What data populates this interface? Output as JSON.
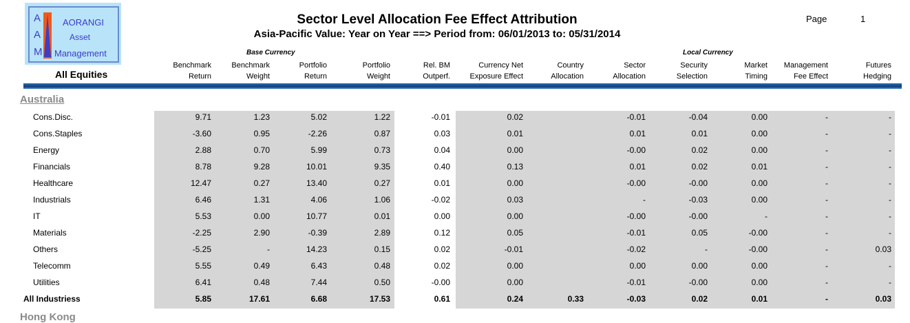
{
  "logo": {
    "letters": [
      "A",
      "A",
      "M"
    ],
    "lines": [
      "AORANGI",
      "Asset",
      "Management"
    ]
  },
  "header": {
    "title": "Sector Level Allocation Fee Effect Attribution",
    "subtitle": "Asia-Pacific Value: Year on Year ==> Period from: 06/01/2013 to: 05/31/2014",
    "page_label": "Page",
    "page_number": "1",
    "portfolio": "All Equities",
    "group_base": "Base Currency",
    "group_local": "Local Currency"
  },
  "columns": [
    [
      "Benchmark",
      "Return"
    ],
    [
      "Benchmark",
      "Weight"
    ],
    [
      "Portfolio",
      "Return"
    ],
    [
      "Portfolio",
      "Weight"
    ],
    [
      "Rel. BM",
      "Outperf."
    ],
    [
      "Currency Net",
      "Exposure Effect"
    ],
    [
      "Country",
      "Allocation"
    ],
    [
      "Sector",
      "Allocation"
    ],
    [
      "Security",
      "Selection"
    ],
    [
      "Market",
      "Timing"
    ],
    [
      "Management",
      "Fee Effect"
    ],
    [
      "Futures",
      "Hedging"
    ]
  ],
  "region": "Australia",
  "next_region": "Hong Kong",
  "rows": [
    {
      "label": "Cons.Disc.",
      "values": [
        "9.71",
        "1.23",
        "5.02",
        "1.22",
        "-0.01",
        "0.02",
        "",
        "-0.01",
        "-0.04",
        "0.00",
        "-",
        "-"
      ]
    },
    {
      "label": "Cons.Staples",
      "values": [
        "-3.60",
        "0.95",
        "-2.26",
        "0.87",
        "0.03",
        "0.01",
        "",
        "0.01",
        "0.01",
        "0.00",
        "-",
        "-"
      ]
    },
    {
      "label": "Energy",
      "values": [
        "2.88",
        "0.70",
        "5.99",
        "0.73",
        "0.04",
        "0.00",
        "",
        "-0.00",
        "0.02",
        "0.00",
        "-",
        "-"
      ]
    },
    {
      "label": "Financials",
      "values": [
        "8.78",
        "9.28",
        "10.01",
        "9.35",
        "0.40",
        "0.13",
        "",
        "0.01",
        "0.02",
        "0.01",
        "-",
        "-"
      ]
    },
    {
      "label": "Healthcare",
      "values": [
        "12.47",
        "0.27",
        "13.40",
        "0.27",
        "0.01",
        "0.00",
        "",
        "-0.00",
        "-0.00",
        "0.00",
        "-",
        "-"
      ]
    },
    {
      "label": "Industrials",
      "values": [
        "6.46",
        "1.31",
        "4.06",
        "1.06",
        "-0.02",
        "0.03",
        "",
        "-",
        "-0.03",
        "0.00",
        "-",
        "-"
      ]
    },
    {
      "label": "IT",
      "values": [
        "5.53",
        "0.00",
        "10.77",
        "0.01",
        "0.00",
        "0.00",
        "",
        "-0.00",
        "-0.00",
        "-",
        "-",
        "-"
      ]
    },
    {
      "label": "Materials",
      "values": [
        "-2.25",
        "2.90",
        "-0.39",
        "2.89",
        "0.12",
        "0.05",
        "",
        "-0.01",
        "0.05",
        "-0.00",
        "-",
        "-"
      ]
    },
    {
      "label": "Others",
      "values": [
        "-5.25",
        "-",
        "14.23",
        "0.15",
        "0.02",
        "-0.01",
        "",
        "-0.02",
        "-",
        "-0.00",
        "-",
        "0.03"
      ]
    },
    {
      "label": "Telecomm",
      "values": [
        "5.55",
        "0.49",
        "6.43",
        "0.48",
        "0.02",
        "0.00",
        "",
        "0.00",
        "0.00",
        "0.00",
        "-",
        "-"
      ]
    },
    {
      "label": "Utilities",
      "values": [
        "6.41",
        "0.48",
        "7.44",
        "0.50",
        "-0.00",
        "0.00",
        "",
        "-0.01",
        "-0.00",
        "0.00",
        "-",
        "-"
      ]
    }
  ],
  "total": {
    "label": "All Industriess",
    "values": [
      "5.85",
      "17.61",
      "6.68",
      "17.53",
      "0.61",
      "0.24",
      "0.33",
      "-0.03",
      "0.02",
      "0.01",
      "-",
      "0.03"
    ]
  },
  "colors": {
    "shade": "#d6d6d6",
    "rule": "#0d3f7a",
    "region": "#8a8a8a",
    "logo_bg": "#b9e3f9",
    "logo_text": "#3a3ec8",
    "logo_bar": "#f05a1a"
  }
}
